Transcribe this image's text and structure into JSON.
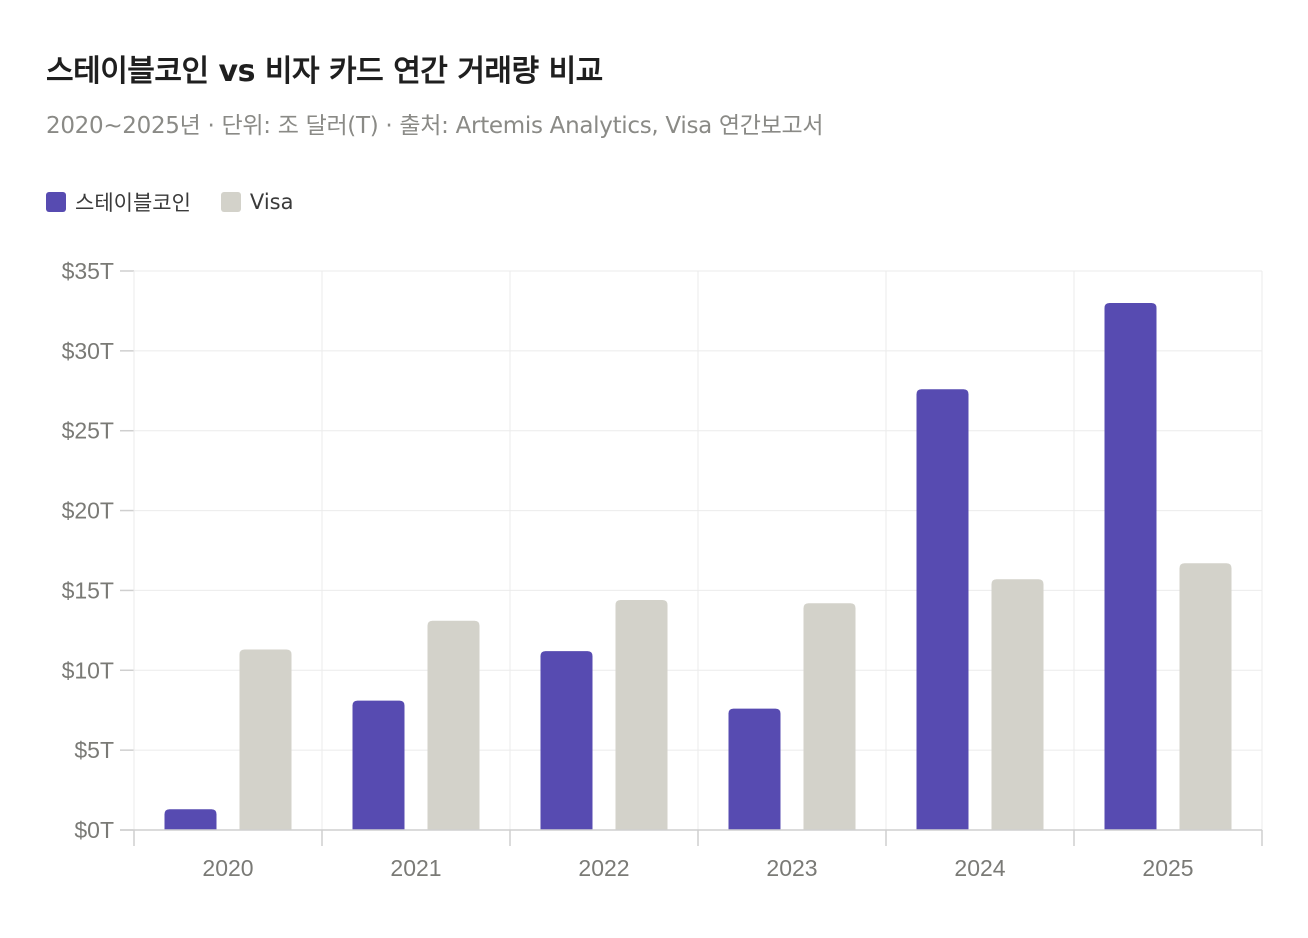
{
  "chart_data": {
    "type": "bar",
    "title": "스테이블코인 vs 비자 카드 연간 거래량 비교",
    "subtitle": "2020~2025년 · 단위: 조 달러(T) · 출처: Artemis Analytics, Visa 연간보고서",
    "categories": [
      "2020",
      "2021",
      "2022",
      "2023",
      "2024",
      "2025"
    ],
    "series": [
      {
        "name": "스테이블코인",
        "color": "#574bb1",
        "values": [
          1.3,
          8.1,
          11.2,
          7.6,
          27.6,
          33.0
        ]
      },
      {
        "name": "Visa",
        "color": "#d3d2ca",
        "values": [
          11.3,
          13.1,
          14.4,
          14.2,
          15.7,
          16.7
        ]
      }
    ],
    "ylim": [
      0,
      35
    ],
    "yticks": [
      0,
      5,
      10,
      15,
      20,
      25,
      30,
      35
    ],
    "ytick_labels": [
      "$0T",
      "$5T",
      "$10T",
      "$15T",
      "$20T",
      "$25T",
      "$30T",
      "$35T"
    ],
    "xlabel": "",
    "ylabel": "",
    "grid": true,
    "legend_position": "top-left"
  }
}
